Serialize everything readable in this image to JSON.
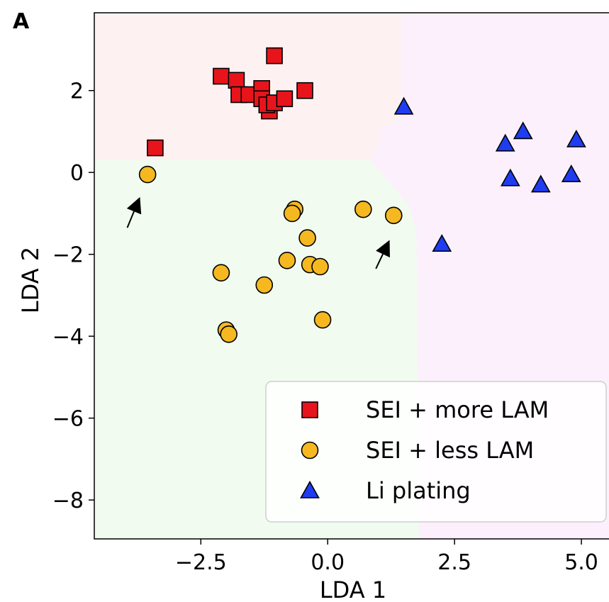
{
  "panel_label": "A",
  "chart_data": {
    "type": "scatter",
    "xlabel": "LDA 1",
    "ylabel": "LDA 2",
    "xlim": [
      -4.6,
      5.6
    ],
    "ylim": [
      -8.95,
      3.9
    ],
    "xticks": [
      -2.5,
      0.0,
      2.5,
      5.0
    ],
    "xtick_labels": [
      "−2.5",
      "0.0",
      "2.5",
      "5.0"
    ],
    "yticks": [
      2,
      0,
      -2,
      -4,
      -6,
      -8
    ],
    "ytick_labels": [
      "2",
      "0",
      "−2",
      "−4",
      "−6",
      "−8"
    ],
    "grid": false,
    "legend_position": "bottom-right",
    "decision_regions": [
      {
        "class": "SEI + more LAM",
        "color": "#fdf1f1"
      },
      {
        "class": "SEI + less LAM",
        "color": "#f1fbf0"
      },
      {
        "class": "Li plating",
        "color": "#fbf0fb"
      }
    ],
    "series": [
      {
        "name": "SEI + more LAM",
        "marker": "square",
        "color": "#e8141c",
        "points": [
          [
            -3.4,
            0.6
          ],
          [
            -2.1,
            2.35
          ],
          [
            -1.8,
            2.25
          ],
          [
            -1.75,
            1.9
          ],
          [
            -1.55,
            1.9
          ],
          [
            -1.3,
            2.05
          ],
          [
            -1.3,
            1.8
          ],
          [
            -1.15,
            1.5
          ],
          [
            -1.2,
            1.65
          ],
          [
            -1.05,
            1.7
          ],
          [
            -0.85,
            1.8
          ],
          [
            -1.05,
            2.85
          ],
          [
            -0.45,
            2.0
          ]
        ]
      },
      {
        "name": "SEI + less LAM",
        "marker": "circle",
        "color": "#f5b820",
        "points": [
          [
            -3.55,
            -0.05
          ],
          [
            -0.65,
            -0.9
          ],
          [
            -0.7,
            -1.0
          ],
          [
            0.7,
            -0.9
          ],
          [
            1.3,
            -1.05
          ],
          [
            -0.4,
            -1.6
          ],
          [
            -0.8,
            -2.15
          ],
          [
            -0.35,
            -2.25
          ],
          [
            -0.15,
            -2.3
          ],
          [
            -2.1,
            -2.45
          ],
          [
            -1.25,
            -2.75
          ],
          [
            -2.0,
            -3.85
          ],
          [
            -1.95,
            -3.95
          ],
          [
            -0.1,
            -3.6
          ]
        ]
      },
      {
        "name": "Li plating",
        "marker": "triangle",
        "color": "#1f3cf0",
        "points": [
          [
            1.5,
            1.6
          ],
          [
            3.5,
            0.7
          ],
          [
            3.85,
            1.0
          ],
          [
            4.9,
            0.8
          ],
          [
            3.6,
            -0.15
          ],
          [
            4.2,
            -0.3
          ],
          [
            4.8,
            -0.05
          ],
          [
            2.25,
            -1.75
          ]
        ]
      }
    ],
    "annotations": [
      {
        "type": "arrow",
        "from": [
          -3.95,
          -1.35
        ],
        "to": [
          -3.7,
          -0.6
        ]
      },
      {
        "type": "arrow",
        "from": [
          0.95,
          -2.35
        ],
        "to": [
          1.22,
          -1.65
        ]
      }
    ]
  }
}
